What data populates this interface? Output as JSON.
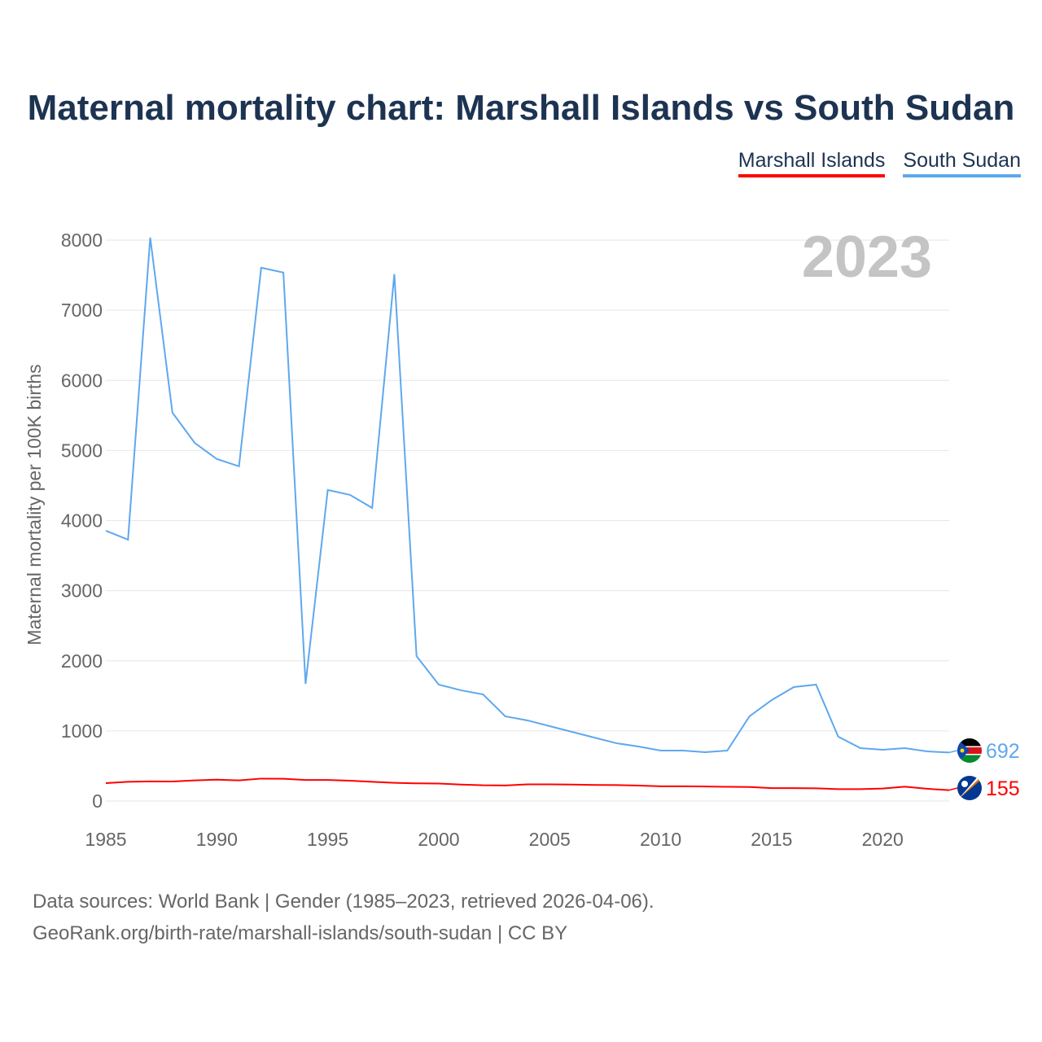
{
  "title": "Maternal mortality chart: Marshall Islands vs South Sudan",
  "legend": [
    "Marshall Islands",
    "South Sudan"
  ],
  "year_label": "2023",
  "source_lines": [
    "Data sources: World Bank | Gender (1985–2023, retrieved 2026-04-06).",
    "GeoRank.org/birth-rate/marshall-islands/south-sudan | CC BY"
  ],
  "chart_data": {
    "type": "line",
    "title": "Maternal mortality chart: Marshall Islands vs South Sudan",
    "xlabel": "",
    "ylabel": "Maternal mortality per 100K births",
    "xlim": [
      1985,
      2023
    ],
    "ylim": [
      0,
      8000
    ],
    "xticks": [
      1985,
      1990,
      1995,
      2000,
      2005,
      2010,
      2015,
      2020
    ],
    "yticks": [
      0,
      1000,
      2000,
      3000,
      4000,
      5000,
      6000,
      7000,
      8000
    ],
    "grid": true,
    "legend_position": "top-right",
    "x": [
      1985,
      1986,
      1987,
      1988,
      1989,
      1990,
      1991,
      1992,
      1993,
      1994,
      1995,
      1996,
      1997,
      1998,
      1999,
      2000,
      2001,
      2002,
      2003,
      2004,
      2005,
      2006,
      2007,
      2008,
      2009,
      2010,
      2011,
      2012,
      2013,
      2014,
      2015,
      2016,
      2017,
      2018,
      2019,
      2020,
      2021,
      2022,
      2023
    ],
    "series": [
      {
        "name": "Marshall Islands",
        "color": "#ff0000",
        "end_label": "155",
        "flag": "marshall-islands-flag",
        "values": [
          255,
          275,
          280,
          278,
          295,
          305,
          295,
          320,
          318,
          300,
          300,
          290,
          275,
          260,
          252,
          250,
          235,
          225,
          222,
          238,
          238,
          235,
          230,
          228,
          220,
          210,
          210,
          208,
          203,
          200,
          185,
          185,
          182,
          170,
          170,
          178,
          205,
          175,
          155
        ]
      },
      {
        "name": "South Sudan",
        "color": "#5ea8ee",
        "end_label": "692",
        "flag": "south-sudan-flag",
        "values": [
          3856,
          3728,
          8037,
          5540,
          5110,
          4878,
          4774,
          7607,
          7538,
          1672,
          4437,
          4367,
          4181,
          7515,
          2067,
          1661,
          1580,
          1521,
          1208,
          1150,
          1068,
          987,
          906,
          825,
          778,
          720,
          720,
          697,
          720,
          1208,
          1440,
          1626,
          1661,
          918,
          755,
          732,
          755,
          708,
          692
        ]
      }
    ]
  }
}
